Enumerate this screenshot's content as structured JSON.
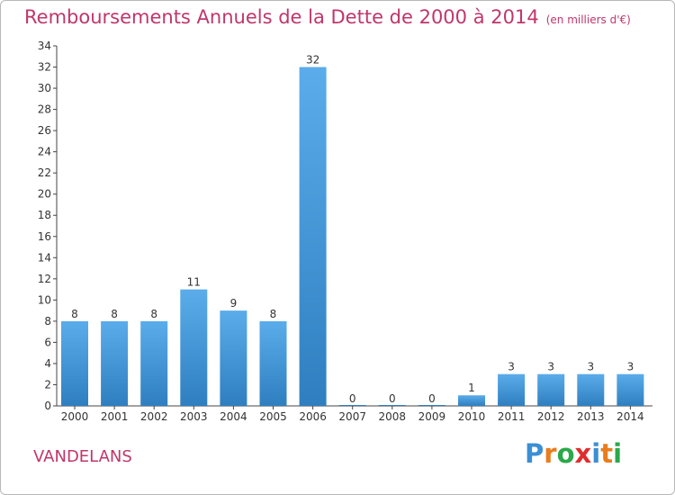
{
  "title": "Remboursements Annuels de la Dette de 2000 à 2014",
  "unit": "(en milliers d'€)",
  "commune": "VANDELANS",
  "logo": {
    "letters": [
      "P",
      "r",
      "o",
      "x",
      "i",
      "t",
      "i"
    ],
    "colors": [
      "#3b8fd4",
      "#e87d1e",
      "#2aa84a",
      "#e02d2d",
      "#3b8fd4",
      "#e87d1e",
      "#2aa84a"
    ]
  },
  "colors": {
    "accent": "#c0366b",
    "bar_light": "#5aacea",
    "bar_dark": "#2f7fc0"
  },
  "chart_data": {
    "type": "bar",
    "title": "Remboursements Annuels de la Dette de 2000 à 2014",
    "xlabel": "",
    "ylabel": "",
    "categories": [
      "2000",
      "2001",
      "2002",
      "2003",
      "2004",
      "2005",
      "2006",
      "2007",
      "2008",
      "2009",
      "2010",
      "2011",
      "2012",
      "2013",
      "2014"
    ],
    "values": [
      8,
      8,
      8,
      11,
      9,
      8,
      32,
      0,
      0,
      0,
      1,
      3,
      3,
      3,
      3
    ],
    "ylim": [
      0,
      34
    ],
    "yticks": [
      0,
      2,
      4,
      6,
      8,
      10,
      12,
      14,
      16,
      18,
      20,
      22,
      24,
      26,
      28,
      30,
      32,
      34
    ],
    "grid": false,
    "legend": "none"
  }
}
